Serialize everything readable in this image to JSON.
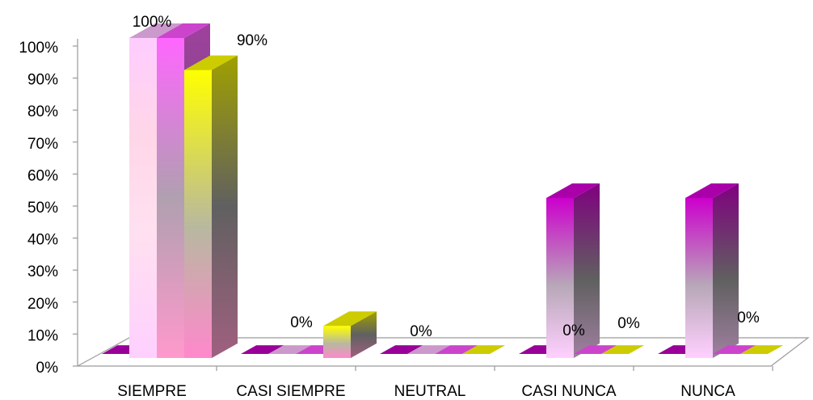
{
  "chart_data": {
    "type": "bar",
    "variant": "3d-clustered",
    "categories": [
      "SIEMPRE",
      "CASI SIEMPRE",
      "NEUTRAL",
      "CASI NUNCA",
      "NUNCA"
    ],
    "series": [
      {
        "values": [
          0,
          0,
          0,
          0,
          0
        ],
        "color": "#990099"
      },
      {
        "values": [
          100,
          0,
          0,
          50,
          50
        ],
        "color": "#ff66ff"
      },
      {
        "values": [
          100,
          0,
          0,
          0,
          0
        ],
        "color": "#ff33ff"
      },
      {
        "values": [
          90,
          10,
          0,
          0,
          0
        ],
        "color": "#ffff00"
      }
    ],
    "data_labels": [
      {
        "text": "100%",
        "category": 0
      },
      {
        "text": "90%",
        "category": 0
      },
      {
        "text": "0%",
        "category": 1
      },
      {
        "text": "0%",
        "category": 2
      },
      {
        "text": "0%",
        "category": 3
      },
      {
        "text": "0%",
        "category": 3
      },
      {
        "text": "0%",
        "category": 4
      }
    ],
    "y_ticks": [
      "0%",
      "10%",
      "20%",
      "30%",
      "40%",
      "50%",
      "60%",
      "70%",
      "80%",
      "90%",
      "100%"
    ],
    "ylim": [
      0,
      100
    ],
    "grid": false,
    "legend": "none"
  }
}
